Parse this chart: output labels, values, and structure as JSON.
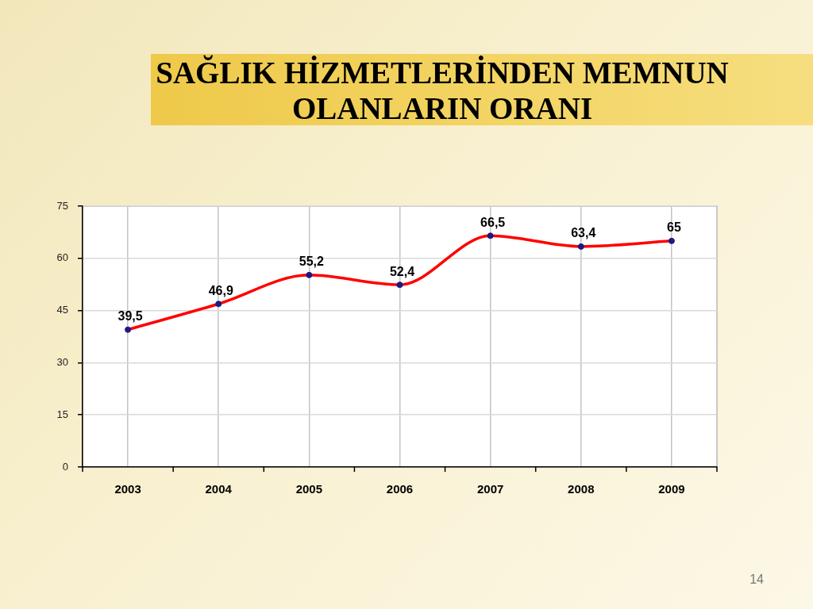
{
  "chart_data": {
    "type": "line",
    "title": "SAĞLIK HİZMETLERİNDEN MEMNUN OLANLARIN ORANI",
    "categories": [
      "2003",
      "2004",
      "2005",
      "2006",
      "2007",
      "2008",
      "2009"
    ],
    "values": [
      39.5,
      46.9,
      55.2,
      52.4,
      66.5,
      63.4,
      65
    ],
    "value_labels": [
      "39,5",
      "46,9",
      "55,2",
      "52,4",
      "66,5",
      "63,4",
      "65"
    ],
    "color": "#ff0000",
    "ylim": [
      0,
      75
    ],
    "yticks": [
      0,
      15,
      30,
      45,
      60,
      75
    ],
    "grid": true,
    "marker": "circle",
    "line_style": "solid",
    "annotations": [
      "14"
    ]
  }
}
